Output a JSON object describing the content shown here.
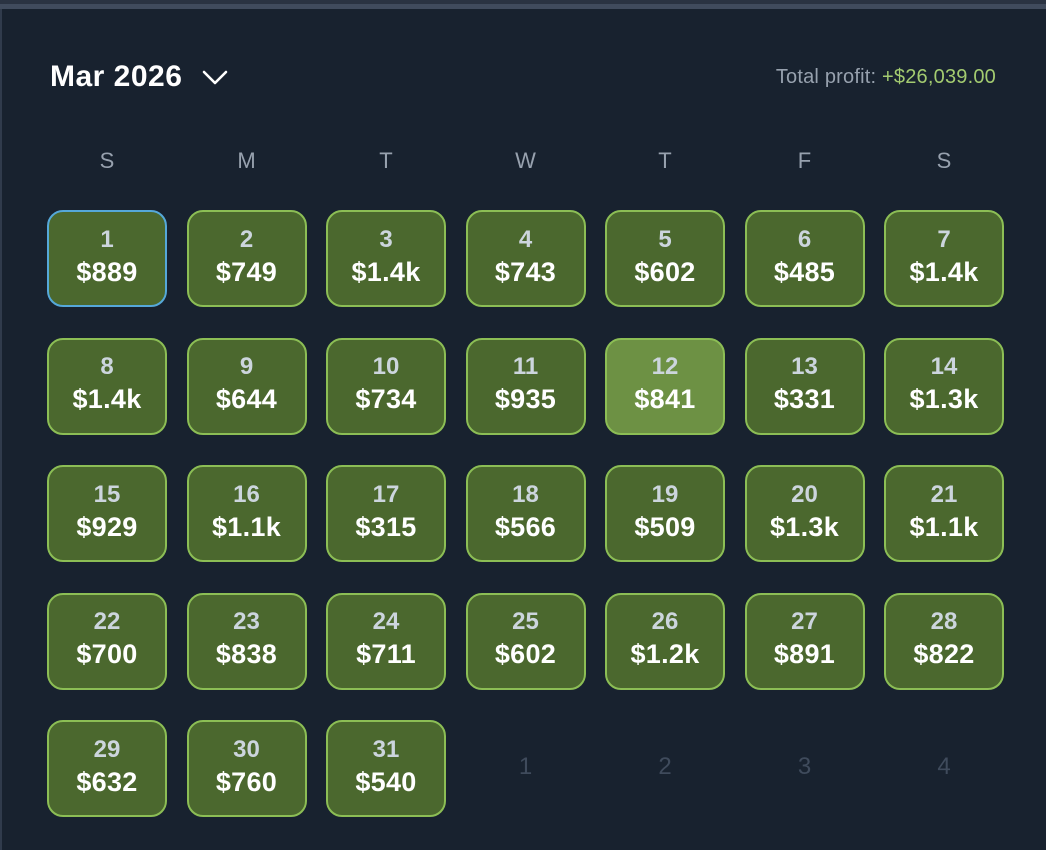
{
  "header": {
    "month_label": "Mar 2026",
    "total_profit_label": "Total profit: ",
    "total_profit_value": "+$26,039.00"
  },
  "weekdays": [
    "S",
    "M",
    "T",
    "W",
    "T",
    "F",
    "S"
  ],
  "calendar": {
    "days": [
      {
        "day": "1",
        "profit": "$889",
        "selected": true
      },
      {
        "day": "2",
        "profit": "$749"
      },
      {
        "day": "3",
        "profit": "$1.4k"
      },
      {
        "day": "4",
        "profit": "$743"
      },
      {
        "day": "5",
        "profit": "$602"
      },
      {
        "day": "6",
        "profit": "$485"
      },
      {
        "day": "7",
        "profit": "$1.4k"
      },
      {
        "day": "8",
        "profit": "$1.4k"
      },
      {
        "day": "9",
        "profit": "$644"
      },
      {
        "day": "10",
        "profit": "$734"
      },
      {
        "day": "11",
        "profit": "$935"
      },
      {
        "day": "12",
        "profit": "$841",
        "highlighted": true
      },
      {
        "day": "13",
        "profit": "$331"
      },
      {
        "day": "14",
        "profit": "$1.3k"
      },
      {
        "day": "15",
        "profit": "$929"
      },
      {
        "day": "16",
        "profit": "$1.1k"
      },
      {
        "day": "17",
        "profit": "$315"
      },
      {
        "day": "18",
        "profit": "$566"
      },
      {
        "day": "19",
        "profit": "$509"
      },
      {
        "day": "20",
        "profit": "$1.3k"
      },
      {
        "day": "21",
        "profit": "$1.1k"
      },
      {
        "day": "22",
        "profit": "$700"
      },
      {
        "day": "23",
        "profit": "$838"
      },
      {
        "day": "24",
        "profit": "$711"
      },
      {
        "day": "25",
        "profit": "$602"
      },
      {
        "day": "26",
        "profit": "$1.2k"
      },
      {
        "day": "27",
        "profit": "$891"
      },
      {
        "day": "28",
        "profit": "$822"
      },
      {
        "day": "29",
        "profit": "$632"
      },
      {
        "day": "30",
        "profit": "$760"
      },
      {
        "day": "31",
        "profit": "$540"
      }
    ],
    "next_month_days": [
      "1",
      "2",
      "3",
      "4"
    ]
  },
  "colors": {
    "background": "#18222f",
    "cell_bg": "#4b682e",
    "cell_border": "#8cbe55",
    "cell_bg_highlight": "#6d9144",
    "selected_border": "#55a8d9",
    "profit_green": "#a3cb70",
    "muted_text": "#97a1ae",
    "ghost_text": "#3f4b5c"
  }
}
